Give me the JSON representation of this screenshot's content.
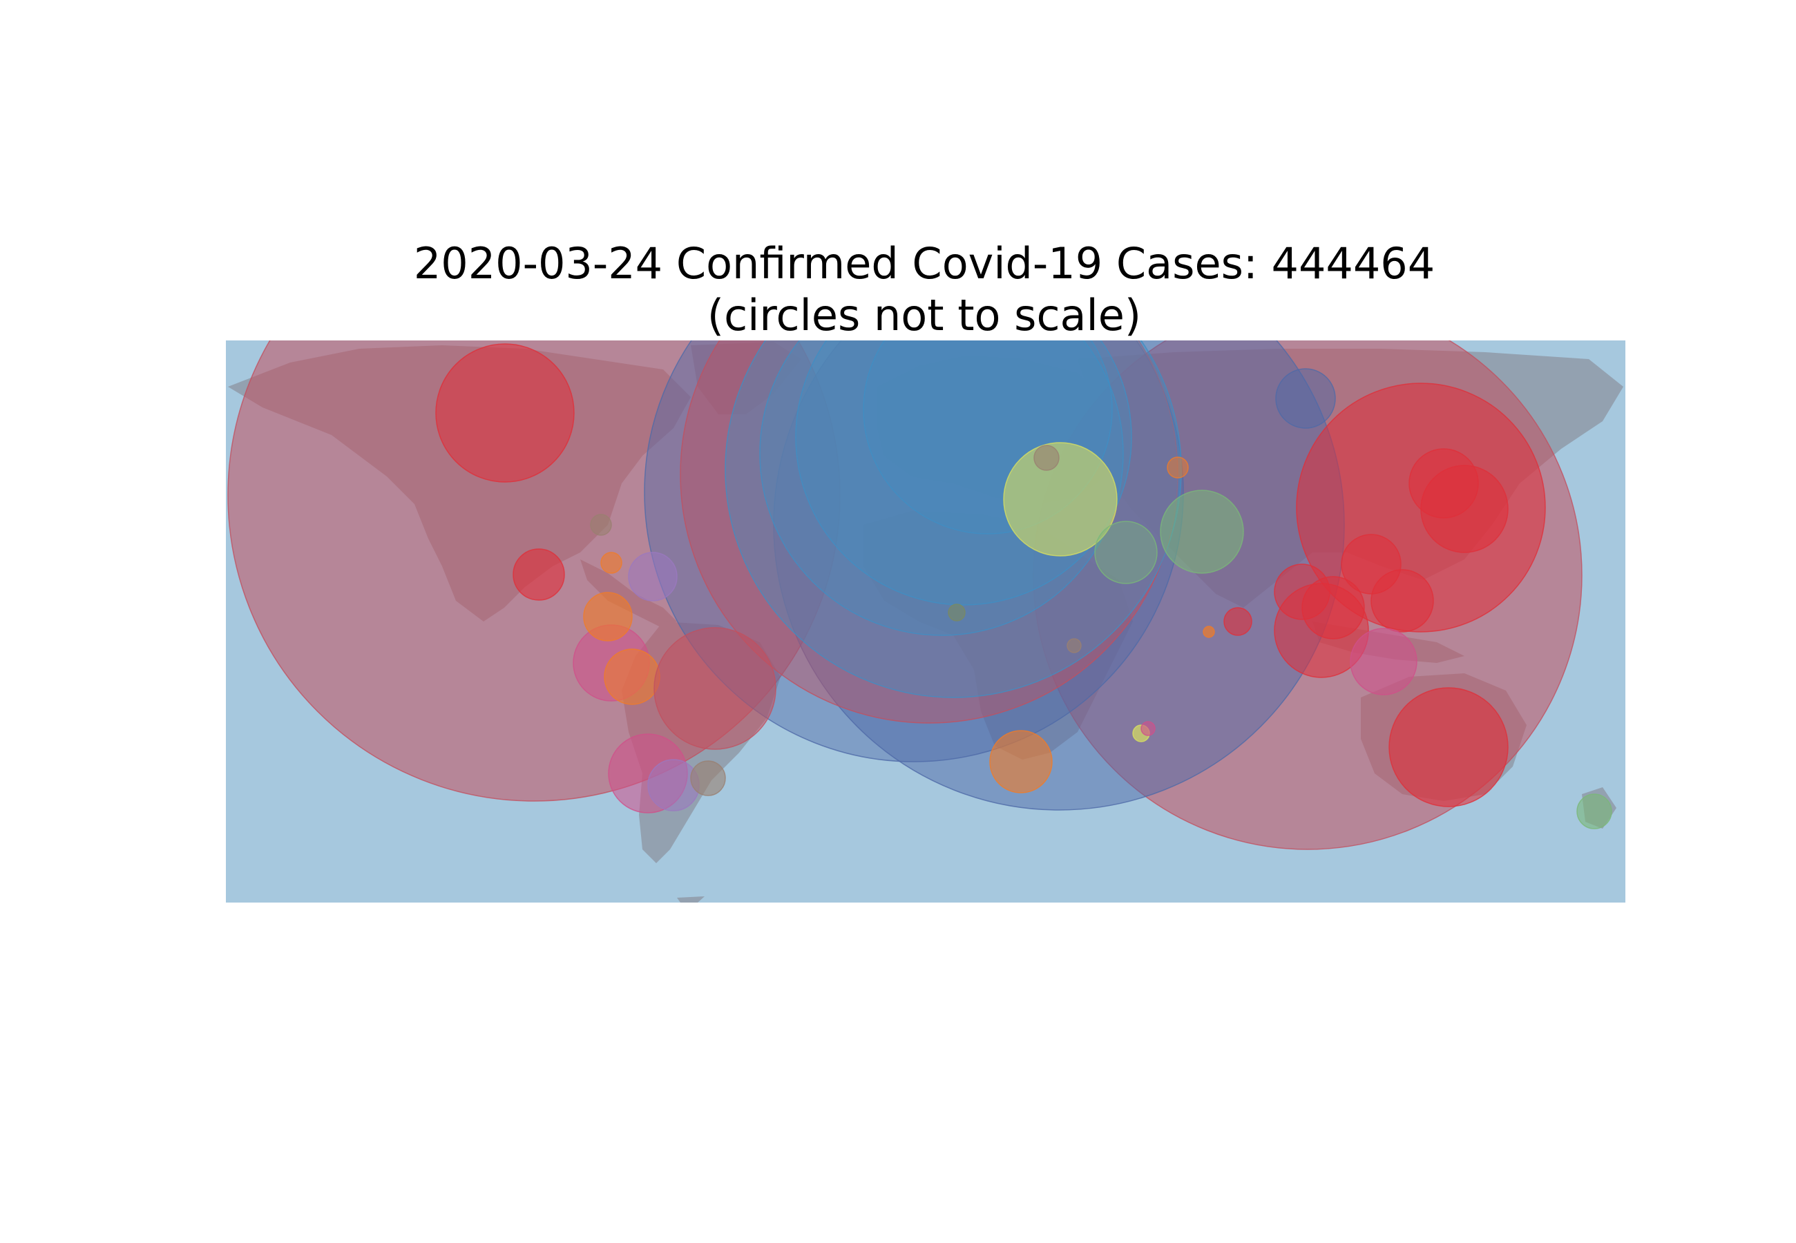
{
  "map": {
    "title": "2020-03-24 Confirmed Covid-19 Cases: 444464",
    "subtitle": "(circles not to scale)",
    "colors": {
      "ocean": "#a6c8de",
      "land": "#8f9aa8",
      "crimson": "#c2505f",
      "red": "#e0303a",
      "blue": "#3f8ec4",
      "navy": "#4f6aa8",
      "orange": "#f07c28",
      "pink": "#d0508a",
      "purple": "#9b78c0",
      "yellow": "#d8e060",
      "green": "#7ab878",
      "olive": "#7a8a60",
      "brown": "#9a8070"
    },
    "markers": [
      {
        "name": "large-crimson-circle-americas",
        "color": "crimson"
      },
      {
        "name": "large-crimson-circle-asia",
        "color": "crimson"
      },
      {
        "name": "large-purple-circle-eurasia",
        "color": "navy"
      },
      {
        "name": "large-purple-circle-europe-a",
        "color": "navy"
      },
      {
        "name": "large-crimson-circle-europe",
        "color": "crimson"
      },
      {
        "name": "large-blue-circle-europe-a",
        "color": "blue"
      },
      {
        "name": "large-blue-circle-europe-b",
        "color": "blue"
      },
      {
        "name": "large-blue-circle-europe-c",
        "color": "blue"
      },
      {
        "name": "large-blue-circle-europe-d",
        "color": "blue"
      },
      {
        "name": "red-circle-china",
        "color": "red"
      },
      {
        "name": "red-circle-japan",
        "color": "red"
      },
      {
        "name": "red-circle-korea",
        "color": "red"
      },
      {
        "name": "red-circle-canada",
        "color": "red"
      },
      {
        "name": "red-circle-australia",
        "color": "red"
      },
      {
        "name": "red-circle-southeast-asia-a",
        "color": "red"
      },
      {
        "name": "red-circle-southeast-asia-b",
        "color": "red"
      },
      {
        "name": "red-circle-southeast-asia-c",
        "color": "red"
      },
      {
        "name": "red-circle-philippines",
        "color": "red"
      },
      {
        "name": "red-circle-taiwan",
        "color": "red"
      },
      {
        "name": "red-circle-mexico",
        "color": "red"
      },
      {
        "name": "red-circle-sri-lanka",
        "color": "red"
      },
      {
        "name": "pink-circle-indonesia",
        "color": "pink"
      },
      {
        "name": "yellow-circle-turkey",
        "color": "yellow"
      },
      {
        "name": "green-circle-iran",
        "color": "green"
      },
      {
        "name": "green-circle-saudi",
        "color": "green"
      },
      {
        "name": "green-circle-new-zealand",
        "color": "green"
      },
      {
        "name": "navy-circle-russia",
        "color": "navy"
      },
      {
        "name": "pink-circle-colombia",
        "color": "pink"
      },
      {
        "name": "orange-circle-ecuador",
        "color": "orange"
      },
      {
        "name": "crimson-circle-brazil",
        "color": "crimson"
      },
      {
        "name": "pink-circle-chile",
        "color": "pink"
      },
      {
        "name": "purple-circle-argentina",
        "color": "purple"
      },
      {
        "name": "brown-circle-uruguay",
        "color": "brown"
      },
      {
        "name": "orange-circle-south-africa",
        "color": "orange"
      },
      {
        "name": "orange-circle-panama",
        "color": "orange"
      },
      {
        "name": "purple-circle-caribbean",
        "color": "purple"
      },
      {
        "name": "brown-circle-cuba",
        "color": "brown"
      },
      {
        "name": "orange-circle-small-ca",
        "color": "orange"
      },
      {
        "name": "small-circle-africa-a",
        "color": "olive"
      },
      {
        "name": "small-circle-africa-b",
        "color": "brown"
      },
      {
        "name": "small-circle-mauritius",
        "color": "yellow"
      },
      {
        "name": "small-circle-reunion",
        "color": "pink"
      },
      {
        "name": "small-circle-georgia",
        "color": "brown"
      },
      {
        "name": "small-circle-kazakhstan",
        "color": "orange"
      },
      {
        "name": "small-circle-india",
        "color": "orange"
      }
    ]
  }
}
